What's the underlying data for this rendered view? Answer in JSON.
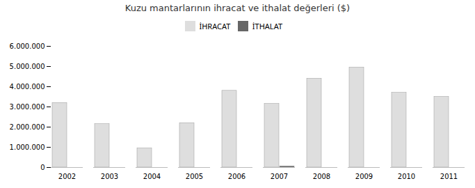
{
  "chart_data": {
    "type": "bar",
    "title": "Kuzu mantarlarının ihracat ve ithalat değerleri ($)",
    "categories": [
      "2002",
      "2003",
      "2004",
      "2005",
      "2006",
      "2007",
      "2008",
      "2009",
      "2010",
      "2011"
    ],
    "series": [
      {
        "name": "İHRACAT",
        "color": "#dedede",
        "values": [
          3200000,
          2150000,
          950000,
          2200000,
          3800000,
          3150000,
          4400000,
          4950000,
          3700000,
          3500000
        ]
      },
      {
        "name": "İTHALAT",
        "color": "#666666",
        "values": [
          0,
          0,
          0,
          0,
          0,
          60000,
          0,
          0,
          0,
          0
        ]
      }
    ],
    "ylim": [
      0,
      6000000
    ],
    "yticks": [
      0,
      {
        "value": 1000000,
        "label": "1.000.000"
      },
      {
        "value": 2000000,
        "label": "2.000.000"
      },
      {
        "value": 3000000,
        "label": "3.000.000"
      },
      {
        "value": 4000000,
        "label": "4.000.000"
      },
      {
        "value": 5000000,
        "label": "5.000.000"
      },
      {
        "value": 6000000,
        "label": "6.000.000"
      }
    ],
    "grid": false,
    "legend": "top"
  }
}
